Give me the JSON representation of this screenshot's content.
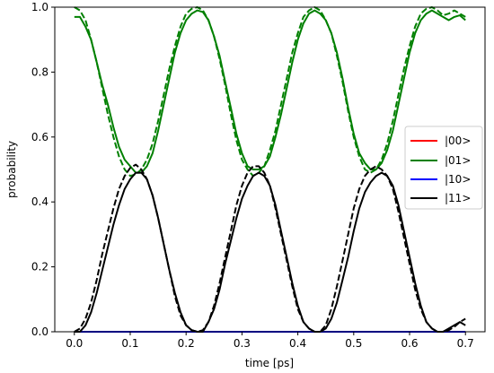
{
  "chart_data": {
    "type": "line",
    "xlabel": "time [ps]",
    "ylabel": "probability",
    "xlim": [
      -0.035,
      0.735
    ],
    "ylim": [
      0.0,
      1.0
    ],
    "xticks": [
      0.0,
      0.1,
      0.2,
      0.3,
      0.4,
      0.5,
      0.6,
      0.7
    ],
    "xtick_labels": [
      "0.0",
      "0.1",
      "0.2",
      "0.3",
      "0.4",
      "0.5",
      "0.6",
      "0.7"
    ],
    "yticks": [
      0.0,
      0.2,
      0.4,
      0.6,
      0.8,
      1.0
    ],
    "ytick_labels": [
      "0.0",
      "0.2",
      "0.4",
      "0.6",
      "0.8",
      "1.0"
    ],
    "grid": false,
    "legend_position": "center-right",
    "legend": [
      {
        "label": "|00>",
        "color": "#ff0000"
      },
      {
        "label": "|01>",
        "color": "#008000"
      },
      {
        "label": "|10>",
        "color": "#0000ff"
      },
      {
        "label": "|11>",
        "color": "#000000"
      }
    ],
    "series": [
      {
        "name": "|00>",
        "color": "#ff0000",
        "style": "solid",
        "x": [
          0.0,
          0.1,
          0.2,
          0.3,
          0.4,
          0.5,
          0.6,
          0.7
        ],
        "y": [
          0.0,
          0.0,
          0.0,
          0.0,
          0.0,
          0.0,
          0.0,
          0.0
        ]
      },
      {
        "name": "|01>",
        "color": "#008000",
        "style": "solid",
        "x": [
          0.0,
          0.01,
          0.02,
          0.03,
          0.04,
          0.05,
          0.06,
          0.07,
          0.08,
          0.09,
          0.1,
          0.11,
          0.12,
          0.13,
          0.14,
          0.15,
          0.16,
          0.17,
          0.18,
          0.19,
          0.2,
          0.21,
          0.22,
          0.23,
          0.24,
          0.25,
          0.26,
          0.27,
          0.28,
          0.29,
          0.3,
          0.31,
          0.32,
          0.33,
          0.34,
          0.35,
          0.36,
          0.37,
          0.38,
          0.39,
          0.4,
          0.41,
          0.42,
          0.43,
          0.44,
          0.45,
          0.46,
          0.47,
          0.48,
          0.49,
          0.5,
          0.51,
          0.52,
          0.53,
          0.54,
          0.55,
          0.56,
          0.57,
          0.58,
          0.59,
          0.6,
          0.61,
          0.62,
          0.63,
          0.64,
          0.65,
          0.66,
          0.67,
          0.68,
          0.69,
          0.7
        ],
        "y": [
          0.97,
          0.97,
          0.94,
          0.9,
          0.83,
          0.76,
          0.7,
          0.63,
          0.57,
          0.53,
          0.51,
          0.49,
          0.49,
          0.51,
          0.55,
          0.62,
          0.7,
          0.78,
          0.86,
          0.92,
          0.96,
          0.98,
          0.99,
          0.985,
          0.96,
          0.91,
          0.85,
          0.77,
          0.69,
          0.61,
          0.55,
          0.51,
          0.5,
          0.5,
          0.51,
          0.54,
          0.6,
          0.67,
          0.75,
          0.83,
          0.9,
          0.95,
          0.98,
          0.99,
          0.98,
          0.96,
          0.92,
          0.86,
          0.78,
          0.69,
          0.61,
          0.55,
          0.52,
          0.5,
          0.5,
          0.52,
          0.56,
          0.62,
          0.7,
          0.78,
          0.86,
          0.92,
          0.96,
          0.98,
          0.99,
          0.98,
          0.97,
          0.96,
          0.97,
          0.975,
          0.96
        ]
      },
      {
        "name": "|01> (dashed)",
        "color": "#008000",
        "style": "dashed",
        "x": [
          0.0,
          0.01,
          0.02,
          0.03,
          0.04,
          0.05,
          0.06,
          0.07,
          0.08,
          0.09,
          0.1,
          0.11,
          0.12,
          0.13,
          0.14,
          0.15,
          0.16,
          0.17,
          0.18,
          0.19,
          0.2,
          0.21,
          0.22,
          0.23,
          0.24,
          0.25,
          0.26,
          0.27,
          0.28,
          0.29,
          0.3,
          0.31,
          0.32,
          0.33,
          0.34,
          0.35,
          0.36,
          0.37,
          0.38,
          0.39,
          0.4,
          0.41,
          0.42,
          0.43,
          0.44,
          0.45,
          0.46,
          0.47,
          0.48,
          0.49,
          0.5,
          0.51,
          0.52,
          0.53,
          0.54,
          0.55,
          0.56,
          0.57,
          0.58,
          0.59,
          0.6,
          0.61,
          0.62,
          0.63,
          0.64,
          0.65,
          0.66,
          0.67,
          0.68,
          0.69,
          0.7
        ],
        "y": [
          1.0,
          0.99,
          0.96,
          0.9,
          0.83,
          0.75,
          0.67,
          0.6,
          0.54,
          0.5,
          0.48,
          0.485,
          0.5,
          0.53,
          0.58,
          0.65,
          0.73,
          0.81,
          0.88,
          0.94,
          0.98,
          0.995,
          1.0,
          0.99,
          0.96,
          0.91,
          0.84,
          0.76,
          0.67,
          0.59,
          0.53,
          0.5,
          0.48,
          0.49,
          0.51,
          0.56,
          0.62,
          0.7,
          0.78,
          0.86,
          0.92,
          0.97,
          0.99,
          1.0,
          0.99,
          0.96,
          0.92,
          0.85,
          0.77,
          0.68,
          0.6,
          0.54,
          0.5,
          0.49,
          0.5,
          0.53,
          0.58,
          0.65,
          0.73,
          0.81,
          0.88,
          0.94,
          0.98,
          0.995,
          1.0,
          0.99,
          0.975,
          0.98,
          0.99,
          0.98,
          0.97
        ]
      },
      {
        "name": "|10>",
        "color": "#0000ff",
        "style": "solid",
        "x": [
          0.0,
          0.1,
          0.2,
          0.3,
          0.4,
          0.5,
          0.6,
          0.7
        ],
        "y": [
          0.0,
          0.0,
          0.0,
          0.0,
          0.0,
          0.0,
          0.0,
          0.0
        ]
      },
      {
        "name": "|11>",
        "color": "#000000",
        "style": "solid",
        "x": [
          0.0,
          0.01,
          0.02,
          0.03,
          0.04,
          0.05,
          0.06,
          0.07,
          0.08,
          0.09,
          0.1,
          0.11,
          0.12,
          0.13,
          0.14,
          0.15,
          0.16,
          0.17,
          0.18,
          0.19,
          0.2,
          0.21,
          0.22,
          0.23,
          0.24,
          0.25,
          0.26,
          0.27,
          0.28,
          0.29,
          0.3,
          0.31,
          0.32,
          0.33,
          0.34,
          0.35,
          0.36,
          0.37,
          0.38,
          0.39,
          0.4,
          0.41,
          0.42,
          0.43,
          0.44,
          0.45,
          0.46,
          0.47,
          0.48,
          0.49,
          0.5,
          0.51,
          0.52,
          0.53,
          0.54,
          0.55,
          0.56,
          0.57,
          0.58,
          0.59,
          0.6,
          0.61,
          0.62,
          0.63,
          0.64,
          0.65,
          0.66,
          0.67,
          0.68,
          0.69,
          0.7
        ],
        "y": [
          0.0,
          0.0,
          0.02,
          0.06,
          0.12,
          0.19,
          0.26,
          0.33,
          0.39,
          0.44,
          0.47,
          0.49,
          0.49,
          0.47,
          0.42,
          0.35,
          0.27,
          0.19,
          0.12,
          0.06,
          0.02,
          0.005,
          0.0,
          0.0,
          0.03,
          0.07,
          0.13,
          0.21,
          0.28,
          0.35,
          0.41,
          0.45,
          0.48,
          0.49,
          0.48,
          0.45,
          0.39,
          0.31,
          0.23,
          0.15,
          0.08,
          0.03,
          0.01,
          0.0,
          0.0,
          0.01,
          0.04,
          0.09,
          0.16,
          0.23,
          0.31,
          0.38,
          0.43,
          0.46,
          0.48,
          0.49,
          0.48,
          0.45,
          0.39,
          0.31,
          0.23,
          0.15,
          0.08,
          0.03,
          0.01,
          0.0,
          0.0,
          0.01,
          0.02,
          0.03,
          0.02
        ]
      },
      {
        "name": "|11> (dashed)",
        "color": "#000000",
        "style": "dashed",
        "x": [
          0.0,
          0.01,
          0.02,
          0.03,
          0.04,
          0.05,
          0.06,
          0.07,
          0.08,
          0.09,
          0.1,
          0.11,
          0.12,
          0.13,
          0.14,
          0.15,
          0.16,
          0.17,
          0.18,
          0.19,
          0.2,
          0.21,
          0.22,
          0.23,
          0.24,
          0.25,
          0.26,
          0.27,
          0.28,
          0.29,
          0.3,
          0.31,
          0.32,
          0.33,
          0.34,
          0.35,
          0.36,
          0.37,
          0.38,
          0.39,
          0.4,
          0.41,
          0.42,
          0.43,
          0.44,
          0.45,
          0.46,
          0.47,
          0.48,
          0.49,
          0.5,
          0.51,
          0.52,
          0.53,
          0.54,
          0.55,
          0.56,
          0.57,
          0.58,
          0.59,
          0.6,
          0.61,
          0.62,
          0.63,
          0.64,
          0.65,
          0.66,
          0.67,
          0.68,
          0.69,
          0.7
        ],
        "y": [
          0.0,
          0.01,
          0.04,
          0.09,
          0.16,
          0.24,
          0.31,
          0.38,
          0.44,
          0.48,
          0.505,
          0.515,
          0.5,
          0.47,
          0.42,
          0.35,
          0.27,
          0.19,
          0.11,
          0.05,
          0.02,
          0.005,
          0.0,
          0.005,
          0.03,
          0.08,
          0.15,
          0.23,
          0.31,
          0.39,
          0.45,
          0.49,
          0.51,
          0.51,
          0.49,
          0.45,
          0.38,
          0.3,
          0.22,
          0.14,
          0.07,
          0.03,
          0.01,
          0.0,
          0.0,
          0.02,
          0.07,
          0.14,
          0.22,
          0.3,
          0.38,
          0.44,
          0.48,
          0.5,
          0.51,
          0.5,
          0.48,
          0.44,
          0.37,
          0.29,
          0.21,
          0.13,
          0.07,
          0.03,
          0.01,
          0.0,
          0.0,
          0.005,
          0.015,
          0.03,
          0.04
        ]
      }
    ]
  }
}
